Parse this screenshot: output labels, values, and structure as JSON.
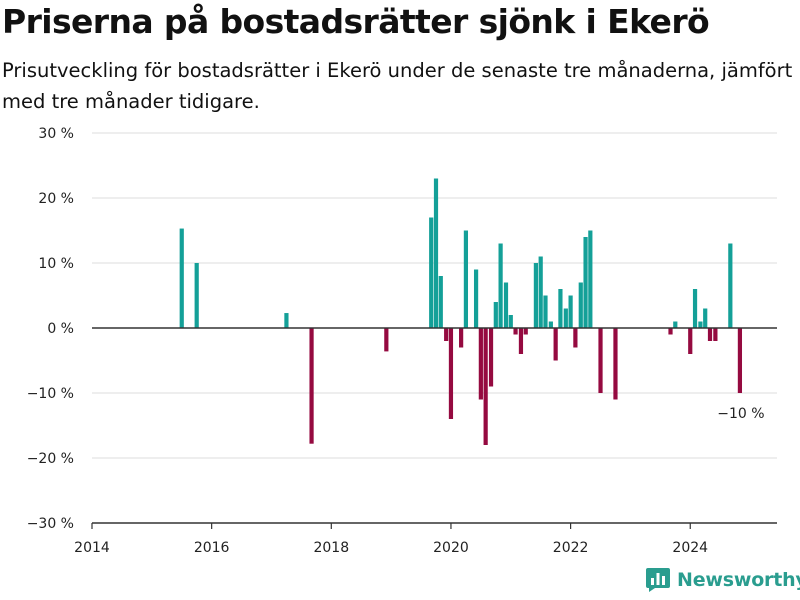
{
  "colors": {
    "positive": "#14a098",
    "negative": "#950a40",
    "grid": "#dddddd",
    "zero_line": "#333333",
    "brand": "#2a9d8f"
  },
  "brand": {
    "name": "Newsworthy",
    "icon": "bar-chart-logo-icon"
  },
  "chart_data": {
    "type": "bar",
    "title": "Priserna på bostadsrätter sjönk i Ekerö",
    "subtitle": "Prisutveckling för bostadsrätter i Ekerö under de senaste tre månaderna, jämfört med tre månader tidigare.",
    "xlim": [
      2014,
      2025.45
    ],
    "ylim": [
      -30,
      30
    ],
    "x_ticks": [
      2014,
      2016,
      2018,
      2020,
      2022,
      2024
    ],
    "x_tick_labels": [
      "2014",
      "2016",
      "2018",
      "2020",
      "2022",
      "2024"
    ],
    "y_ticks": [
      30,
      20,
      10,
      0,
      -10,
      -20,
      -30
    ],
    "y_tick_labels": [
      "30 %",
      "20 %",
      "10 %",
      "0 %",
      "−10 %",
      "−20 %",
      "−30 %"
    ],
    "grid": true,
    "annotation": {
      "text": "−10 %",
      "x": 2024.83,
      "y": -10
    },
    "series": [
      {
        "values": [
          [
            2015.5,
            15.3
          ],
          [
            2015.75,
            10
          ],
          [
            2017.25,
            2.3
          ],
          [
            2017.67,
            -17.8
          ],
          [
            2018.92,
            -3.6
          ],
          [
            2019.67,
            17
          ],
          [
            2019.75,
            23
          ],
          [
            2019.83,
            8
          ],
          [
            2019.92,
            -2
          ],
          [
            2020.0,
            -14
          ],
          [
            2020.17,
            -3
          ],
          [
            2020.25,
            15
          ],
          [
            2020.42,
            9
          ],
          [
            2020.5,
            -11
          ],
          [
            2020.58,
            -18
          ],
          [
            2020.67,
            -9
          ],
          [
            2020.75,
            4
          ],
          [
            2020.83,
            13
          ],
          [
            2020.92,
            7
          ],
          [
            2021.0,
            2
          ],
          [
            2021.08,
            -1
          ],
          [
            2021.17,
            -4
          ],
          [
            2021.25,
            -1
          ],
          [
            2021.42,
            10
          ],
          [
            2021.5,
            11
          ],
          [
            2021.58,
            5
          ],
          [
            2021.67,
            1
          ],
          [
            2021.75,
            -5
          ],
          [
            2021.83,
            6
          ],
          [
            2021.92,
            3
          ],
          [
            2022.0,
            5
          ],
          [
            2022.08,
            -3
          ],
          [
            2022.17,
            7
          ],
          [
            2022.25,
            14
          ],
          [
            2022.33,
            15
          ],
          [
            2022.5,
            -10
          ],
          [
            2022.75,
            -11
          ],
          [
            2023.67,
            -1
          ],
          [
            2023.75,
            1
          ],
          [
            2024.0,
            -4
          ],
          [
            2024.08,
            6
          ],
          [
            2024.17,
            1
          ],
          [
            2024.25,
            3
          ],
          [
            2024.33,
            -2
          ],
          [
            2024.42,
            -2
          ],
          [
            2024.67,
            13
          ],
          [
            2024.83,
            -10
          ]
        ]
      }
    ]
  }
}
